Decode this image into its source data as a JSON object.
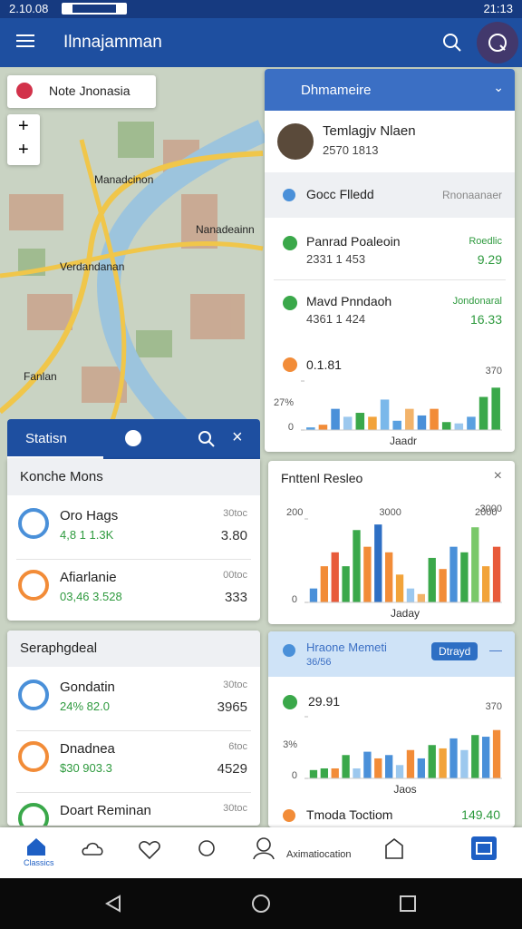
{
  "status_bar": {
    "time": "2.10.08",
    "clock": "21:13"
  },
  "app_bar": {
    "title": "Ilnnajamman"
  },
  "map": {
    "search_label": "Note Jnonasia",
    "labels": [
      "Manadcinon",
      "Nanadeainn",
      "Verdandanan",
      "Fanlan"
    ]
  },
  "right_panel": {
    "title": "Dhmameire",
    "profile": {
      "name": "Temlagjv Nlaen",
      "sub": "2570 1813"
    },
    "section": {
      "title": "Gocc Flledd",
      "action": "Rnonaanaer"
    },
    "items": [
      {
        "name": "Panrad Poaleoin",
        "sub": "2331 1 453",
        "tag": "Roedlic",
        "value": "9.29"
      },
      {
        "name": "Mavd Pnndaoh",
        "sub": "4361 1 424",
        "tag": "Jondonaral",
        "value": "16.33"
      }
    ],
    "chart": {
      "label": "0.1.81",
      "note": "27%",
      "xlabel": "Jaadr",
      "ylim": [
        0,
        370
      ],
      "yticks": [
        0,
        370
      ],
      "values": [
        20,
        40,
        160,
        100,
        130,
        100,
        230,
        70,
        160,
        110,
        160,
        60,
        50,
        100,
        250,
        320
      ],
      "colors": [
        "#5aa0e0",
        "#f28c38",
        "#4a90d9",
        "#9cc8ee",
        "#3aa84a",
        "#f2a33a",
        "#7ab8ea",
        "#5aa0e0",
        "#f2b36a",
        "#4a90d9",
        "#f28c38",
        "#3aa84a",
        "#9cc8ee",
        "#5aa0e0",
        "#3aa84a",
        "#3aa84a"
      ]
    }
  },
  "stats_panel": {
    "title": "Statisn",
    "cards": [
      {
        "title": "Konche Mons",
        "items": [
          {
            "name": "Oro Hags",
            "sub": "4,8 1 1.3K",
            "tag": "30toc",
            "value": "3.80"
          },
          {
            "name": "Afiarlanie",
            "sub": "03,46 3.528",
            "tag": "00toc",
            "value": "333"
          }
        ]
      },
      {
        "title": "Seraphgdeal",
        "items": [
          {
            "name": "Gondatin",
            "sub": "24% 82.0",
            "tag": "30toc",
            "value": "3965"
          },
          {
            "name": "Dnadnea",
            "sub": "$30 903.3",
            "tag": "6toc",
            "value": "4529"
          },
          {
            "name": "Doart Reminan",
            "tag": "30toc"
          }
        ]
      }
    ]
  },
  "result_card": {
    "title": "Fnttenl Resleo",
    "chart": {
      "notes": [
        "200",
        "3000",
        "2000"
      ],
      "xlabel": "Jaday",
      "ylim": [
        0,
        3000
      ],
      "yticks": [
        0,
        3000
      ],
      "values": [
        500,
        1300,
        1800,
        1300,
        2600,
        2000,
        2800,
        1800,
        1000,
        500,
        300,
        1600,
        1200,
        2000,
        1800,
        2700,
        1300,
        2000
      ],
      "colors": [
        "#4a90d9",
        "#f28c38",
        "#e85a3a",
        "#3aa84a",
        "#3aa84a",
        "#f28c38",
        "#2e6fc4",
        "#f28c38",
        "#f2a33a",
        "#9cc8ee",
        "#f2b36a",
        "#3aa84a",
        "#f28c38",
        "#4a90d9",
        "#3aa84a",
        "#7ac86a",
        "#f2a33a",
        "#e85a3a"
      ]
    }
  },
  "memo_card": {
    "title": "Hraone Memeti",
    "subtitle": "36/56",
    "button": "Dtrayd",
    "chart": {
      "label": "29.91",
      "note": "3%",
      "xlabel": "Jaos",
      "ylim": [
        0,
        370
      ],
      "yticks": [
        0,
        370
      ],
      "values": [
        50,
        60,
        60,
        140,
        60,
        160,
        120,
        140,
        80,
        170,
        120,
        200,
        180,
        240,
        170,
        260,
        250,
        290
      ],
      "colors": [
        "#3aa84a",
        "#3aa84a",
        "#f28c38",
        "#3aa84a",
        "#9cc8ee",
        "#4a90d9",
        "#f28c38",
        "#4a90d9",
        "#9cc8ee",
        "#f28c38",
        "#4a90d9",
        "#3aa84a",
        "#f2a33a",
        "#4a90d9",
        "#9cc8ee",
        "#3aa84a",
        "#4a90d9",
        "#f28c38"
      ]
    },
    "footer": {
      "name": "Tmoda Toctiom",
      "value": "149.40"
    }
  },
  "bottom_nav": {
    "labels": [
      "Classics",
      "Aximatiocation"
    ]
  }
}
